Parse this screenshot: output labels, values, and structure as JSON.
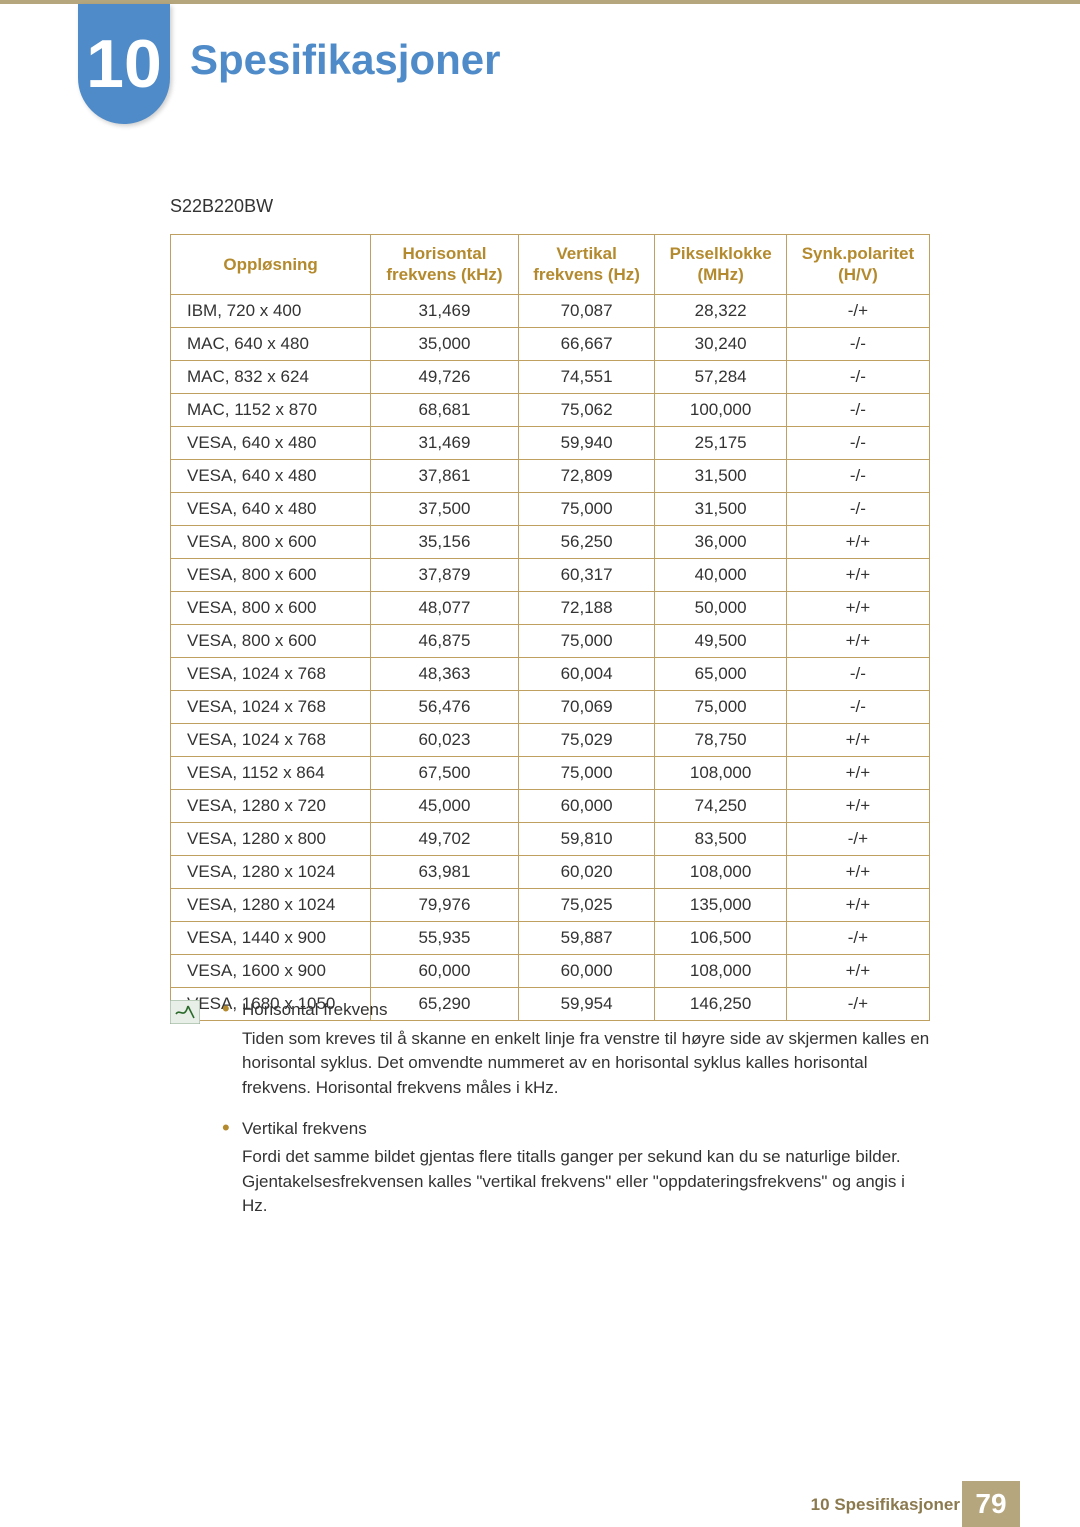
{
  "chapter_number": "10",
  "page_title": "Spesifikasjoner",
  "title_color": "#4f8bc8",
  "model_label": "S22B220BW",
  "table": {
    "header_color": "#b48a2e",
    "border_color": "#c0a060",
    "columns": [
      {
        "line1": "Oppløsning",
        "line2": ""
      },
      {
        "line1": "Horisontal",
        "line2": "frekvens (kHz)"
      },
      {
        "line1": "Vertikal",
        "line2": "frekvens (Hz)"
      },
      {
        "line1": "Pikselklokke",
        "line2": "(MHz)"
      },
      {
        "line1": "Synk.polaritet",
        "line2": "(H/V)"
      }
    ],
    "rows": [
      [
        "IBM, 720 x 400",
        "31,469",
        "70,087",
        "28,322",
        "-/+"
      ],
      [
        "MAC, 640 x 480",
        "35,000",
        "66,667",
        "30,240",
        "-/-"
      ],
      [
        "MAC, 832 x 624",
        "49,726",
        "74,551",
        "57,284",
        "-/-"
      ],
      [
        "MAC, 1152 x 870",
        "68,681",
        "75,062",
        "100,000",
        "-/-"
      ],
      [
        "VESA, 640 x 480",
        "31,469",
        "59,940",
        "25,175",
        "-/-"
      ],
      [
        "VESA, 640 x 480",
        "37,861",
        "72,809",
        "31,500",
        "-/-"
      ],
      [
        "VESA, 640 x 480",
        "37,500",
        "75,000",
        "31,500",
        "-/-"
      ],
      [
        "VESA, 800 x 600",
        "35,156",
        "56,250",
        "36,000",
        "+/+"
      ],
      [
        "VESA, 800 x 600",
        "37,879",
        "60,317",
        "40,000",
        "+/+"
      ],
      [
        "VESA, 800 x 600",
        "48,077",
        "72,188",
        "50,000",
        "+/+"
      ],
      [
        "VESA, 800 x 600",
        "46,875",
        "75,000",
        "49,500",
        "+/+"
      ],
      [
        "VESA, 1024 x 768",
        "48,363",
        "60,004",
        "65,000",
        "-/-"
      ],
      [
        "VESA, 1024 x 768",
        "56,476",
        "70,069",
        "75,000",
        "-/-"
      ],
      [
        "VESA, 1024 x 768",
        "60,023",
        "75,029",
        "78,750",
        "+/+"
      ],
      [
        "VESA, 1152 x 864",
        "67,500",
        "75,000",
        "108,000",
        "+/+"
      ],
      [
        "VESA, 1280 x 720",
        "45,000",
        "60,000",
        "74,250",
        "+/+"
      ],
      [
        "VESA, 1280 x 800",
        "49,702",
        "59,810",
        "83,500",
        "-/+"
      ],
      [
        "VESA, 1280 x 1024",
        "63,981",
        "60,020",
        "108,000",
        "+/+"
      ],
      [
        "VESA, 1280 x 1024",
        "79,976",
        "75,025",
        "135,000",
        "+/+"
      ],
      [
        "VESA, 1440 x 900",
        "55,935",
        "59,887",
        "106,500",
        "-/+"
      ],
      [
        "VESA, 1600 x 900",
        "60,000",
        "60,000",
        "108,000",
        "+/+"
      ],
      [
        "VESA, 1680 x 1050",
        "65,290",
        "59,954",
        "146,250",
        "-/+"
      ]
    ]
  },
  "notes": {
    "bullet_color": "#b48a2e",
    "items": [
      {
        "term": "Horisontal frekvens",
        "desc": "Tiden som kreves til å skanne en enkelt linje fra venstre til høyre side av skjermen kalles en horisontal syklus. Det omvendte nummeret av en horisontal syklus kalles horisontal frekvens. Horisontal frekvens måles i kHz."
      },
      {
        "term": "Vertikal frekvens",
        "desc": "Fordi det samme bildet gjentas flere titalls ganger per sekund kan du se naturlige bilder. Gjentakelsesfrekvensen kalles \"vertikal frekvens\" eller \"oppdateringsfrekvens\" og angis i Hz."
      }
    ]
  },
  "footer": {
    "section_prefix": "10",
    "section_name": "Spesifikasjoner",
    "page_number": "79",
    "label_color": "#8c7a4f",
    "badge_bg": "#b5a67d"
  }
}
